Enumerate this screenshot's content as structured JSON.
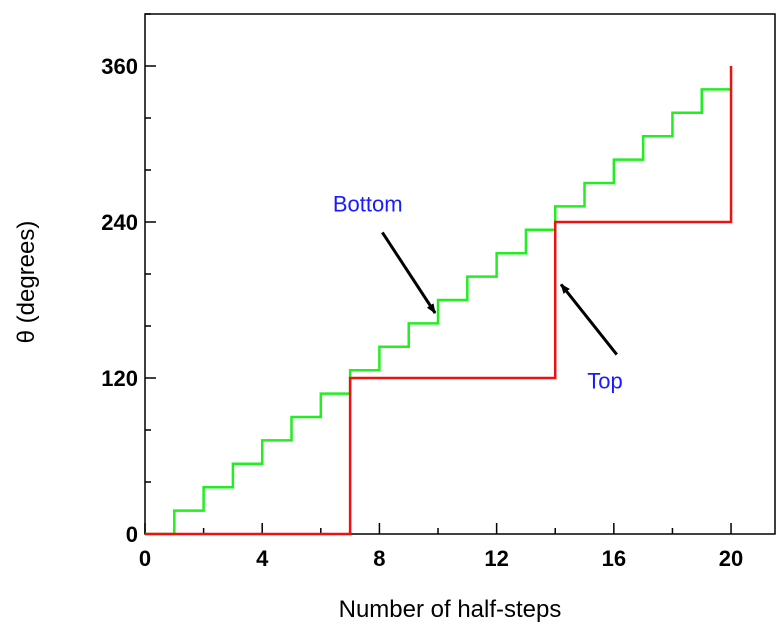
{
  "chart_data": {
    "type": "line",
    "xlabel": "Number of half-steps",
    "ylabel": "θ (degrees)",
    "xlim": [
      0,
      21.5
    ],
    "ylim": [
      0,
      400
    ],
    "xticks": [
      0,
      4,
      8,
      12,
      16,
      20
    ],
    "yticks": [
      0,
      120,
      240,
      360
    ],
    "x_minor_step": 2,
    "y_minor_step": 40,
    "grid": false,
    "series": [
      {
        "key": "bottom",
        "color": "#22ee22",
        "step": "post",
        "x": [
          0,
          1,
          2,
          3,
          4,
          5,
          6,
          7,
          8,
          9,
          10,
          11,
          12,
          13,
          14,
          15,
          16,
          17,
          18,
          19,
          20
        ],
        "y": [
          0,
          18,
          36,
          54,
          72,
          90,
          108,
          126,
          144,
          162,
          180,
          198,
          216,
          234,
          252,
          270,
          288,
          306,
          324,
          342,
          342
        ]
      },
      {
        "key": "top",
        "color": "#ee1111",
        "step": "post",
        "x": [
          0,
          7,
          14,
          20
        ],
        "y": [
          0,
          120,
          240,
          360
        ]
      }
    ],
    "annotations": [
      {
        "text": "Bottom",
        "text_at": [
          7.6,
          248
        ],
        "arrow_from": [
          8.1,
          232
        ],
        "arrow_to": [
          9.9,
          170
        ]
      },
      {
        "text": "Top",
        "text_at": [
          15.7,
          112
        ],
        "arrow_from": [
          16.1,
          138
        ],
        "arrow_to": [
          14.2,
          192
        ]
      }
    ]
  }
}
